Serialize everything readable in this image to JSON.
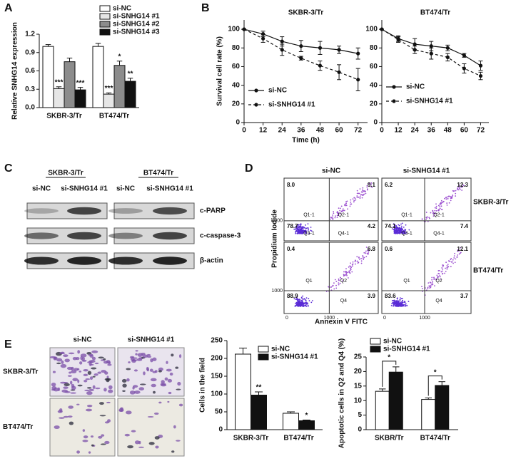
{
  "panel_labels": [
    "A",
    "B",
    "C",
    "D",
    "E"
  ],
  "chart_data": [
    {
      "type": "bar",
      "y_label": "Relative SNHG14 expression",
      "categories": [
        "SKBR-3/Tr",
        "BT474/Tr"
      ],
      "series": [
        {
          "name": "si-NC",
          "color": "#ffffff",
          "values": [
            1.0,
            1.0
          ],
          "errors": [
            0.03,
            0.05
          ]
        },
        {
          "name": "si-SNHG14 #1",
          "color": "#e6e6e6",
          "values": [
            0.31,
            0.22
          ],
          "errors": [
            0.03,
            0.02
          ],
          "annotations": [
            "***",
            "***"
          ]
        },
        {
          "name": "si-SNHG14 #2",
          "color": "#8c8c8c",
          "values": [
            0.75,
            0.69
          ],
          "errors": [
            0.06,
            0.07
          ],
          "annotations": [
            null,
            "*"
          ]
        },
        {
          "name": "si-SNHG14 #3",
          "color": "#111111",
          "values": [
            0.29,
            0.43
          ],
          "errors": [
            0.04,
            0.05
          ],
          "annotations": [
            "***",
            "**"
          ]
        }
      ],
      "ylim": [
        0,
        1.2
      ],
      "yticks": [
        {
          "value": 0,
          "label": "0.0"
        },
        0.3,
        0.6,
        0.9,
        1.2
      ],
      "legend": "upper right"
    },
    {
      "type": "line",
      "title": "SKBR-3/Tr",
      "x_label": "Time (h)",
      "y_label": "Survival cell rate (%)",
      "x": [
        0,
        12,
        24,
        36,
        48,
        60,
        72
      ],
      "series": [
        {
          "name": "si-NC",
          "color": "#111111",
          "linestyle": "solid",
          "values": [
            100,
            95,
            87,
            82,
            80,
            78,
            74
          ],
          "errors": [
            0,
            3,
            5,
            6,
            7,
            4,
            6
          ]
        },
        {
          "name": "si-SNHG14 #1",
          "color": "#111111",
          "linestyle": "dashed",
          "values": [
            100,
            90,
            78,
            69,
            61,
            54,
            46
          ],
          "errors": [
            0,
            4,
            6,
            2,
            5,
            8,
            12
          ]
        }
      ],
      "xlim": [
        0,
        78
      ],
      "xticks": [
        0,
        12,
        24,
        36,
        48,
        60,
        72
      ],
      "ylim": [
        0,
        110
      ],
      "yticks": [
        0,
        20,
        40,
        60,
        80,
        100
      ],
      "legend": "lower left"
    },
    {
      "type": "line",
      "title": "BT474/Tr",
      "x": [
        0,
        12,
        24,
        36,
        48,
        60,
        72
      ],
      "series": [
        {
          "name": "si-NC",
          "color": "#111111",
          "linestyle": "solid",
          "values": [
            100,
            90,
            84,
            82,
            80,
            72,
            61
          ],
          "errors": [
            0,
            3,
            6,
            5,
            3,
            2,
            5
          ]
        },
        {
          "name": "si-SNHG14 #1",
          "color": "#111111",
          "linestyle": "dashed",
          "values": [
            100,
            89,
            78,
            74,
            70,
            58,
            50
          ],
          "errors": [
            0,
            3,
            4,
            6,
            4,
            5,
            4
          ]
        }
      ],
      "xlim": [
        0,
        78
      ],
      "xticks": [
        0,
        12,
        24,
        36,
        48,
        60,
        72
      ],
      "ylim": [
        0,
        110
      ],
      "yticks": [
        0,
        20,
        40,
        60,
        80,
        100
      ],
      "legend": "lower left"
    },
    {
      "type": "bar",
      "y_label": "Cells in the field",
      "categories": [
        "SKBR-3/Tr",
        "BT474/Tr"
      ],
      "series": [
        {
          "name": "si-NC",
          "color": "#ffffff",
          "values": [
            212,
            46
          ],
          "errors": [
            17,
            4
          ]
        },
        {
          "name": "si-SNHG14 #1",
          "color": "#111111",
          "values": [
            97,
            25
          ],
          "errors": [
            9,
            2
          ],
          "annotations": [
            "**",
            "*"
          ]
        }
      ],
      "ylim": [
        0,
        250
      ],
      "yticks": [
        0,
        50,
        100,
        150,
        200,
        250
      ],
      "legend": "upper right"
    },
    {
      "type": "bar",
      "y_label": "Apoptotic cells in Q2 and Q4 (%)",
      "categories": [
        "SKBR/Tr",
        "BT474/Tr"
      ],
      "series": [
        {
          "name": "si-NC",
          "color": "#ffffff",
          "values": [
            13.2,
            10.4
          ],
          "errors": [
            0.8,
            0.5
          ]
        },
        {
          "name": "si-SNHG14 #1",
          "color": "#111111",
          "values": [
            19.8,
            15.2
          ],
          "errors": [
            1.8,
            1.3
          ]
        }
      ],
      "significance": [
        "*",
        "*"
      ],
      "ylim": [
        0,
        25
      ],
      "yticks": [
        0,
        5,
        10,
        15,
        20,
        25
      ],
      "legend": "upper left"
    }
  ],
  "blot": {
    "cell_lines": [
      "SKBR-3/Tr",
      "BT474/Tr"
    ],
    "lanes": [
      "si-NC",
      "si-SNHG14 #1",
      "si-NC",
      "si-SNHG14 #1"
    ],
    "proteins": [
      "c-PARP",
      "c-caspase-3",
      "β-actin"
    ]
  },
  "flow": {
    "columns": [
      "si-NC",
      "si-SNHG14 #1"
    ],
    "rows": [
      "SKBR-3/Tr",
      "BT474/Tr"
    ],
    "x_label": "Annexin V FITC",
    "y_label": "Propidium Iodide",
    "axis_ticks": [
      "0",
      "1000"
    ],
    "plots": [
      {
        "quadrant_values": [
          "8.0",
          "9.1",
          "78.7",
          "4.2"
        ],
        "gates": [
          "Q1-1",
          "Q2-1",
          "Q3-1",
          "Q4-1"
        ]
      },
      {
        "quadrant_values": [
          "6.2",
          "12.3",
          "74.1",
          "7.4"
        ],
        "gates": [
          "Q1-1",
          "Q2-1",
          "Q3-1",
          "Q4-1"
        ]
      },
      {
        "quadrant_values": [
          "0.4",
          "6.8",
          "88.9",
          "3.9"
        ],
        "gates": [
          "Q1",
          "Q2",
          "Q4"
        ]
      },
      {
        "quadrant_values": [
          "0.6",
          "12.1",
          "83.6",
          "3.7"
        ],
        "gates": [
          "Q1",
          "Q2",
          "Q4"
        ]
      }
    ]
  },
  "micrographs": {
    "columns": [
      "si-NC",
      "si-SNHG14 #1"
    ],
    "rows": [
      "SKBR-3/Tr",
      "BT474/Tr"
    ]
  }
}
